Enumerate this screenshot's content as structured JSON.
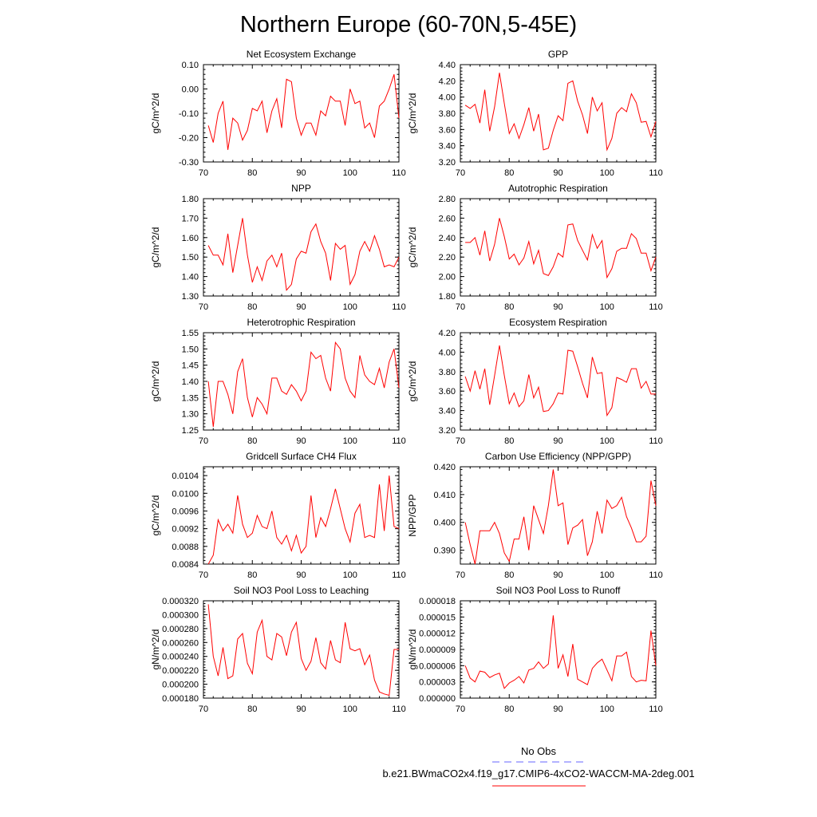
{
  "page_title": "Northern Europe (60-70N,5-45E)",
  "colors": {
    "series": "#ff0000",
    "axis": "#000000",
    "obs": "#6666ff"
  },
  "legend": {
    "obs_label": "No Obs",
    "model_label": "b.e21.BWmaCO2x4.f19_g17.CMIP6-4xCO2-WACCM-MA-2deg.001"
  },
  "chart_data": [
    {
      "type": "line",
      "title": "Net Ecosystem Exchange",
      "ylabel": "gC/m^2/d",
      "xlim": [
        70,
        110
      ],
      "ylim": [
        -0.3,
        0.1
      ],
      "xticks": [
        "70",
        "80",
        "90",
        "100",
        "110"
      ],
      "yticks": [
        "0.10",
        "0.00",
        "-0.10",
        "-0.20",
        "-0.30"
      ],
      "x": [
        71,
        72,
        73,
        74,
        75,
        76,
        77,
        78,
        79,
        80,
        81,
        82,
        83,
        84,
        85,
        86,
        87,
        88,
        89,
        90,
        91,
        92,
        93,
        94,
        95,
        96,
        97,
        98,
        99,
        100,
        101,
        102,
        103,
        104,
        105,
        106,
        107,
        108,
        109,
        110
      ],
      "values": [
        -0.15,
        -0.22,
        -0.1,
        -0.05,
        -0.25,
        -0.12,
        -0.14,
        -0.21,
        -0.17,
        -0.08,
        -0.09,
        -0.05,
        -0.18,
        -0.09,
        -0.04,
        -0.16,
        0.04,
        0.03,
        -0.12,
        -0.19,
        -0.14,
        -0.14,
        -0.19,
        -0.09,
        -0.11,
        -0.03,
        -0.05,
        -0.05,
        -0.15,
        0.0,
        -0.06,
        -0.05,
        -0.16,
        -0.14,
        -0.2,
        -0.07,
        -0.05,
        0.0,
        0.06,
        -0.12
      ]
    },
    {
      "type": "line",
      "title": "GPP",
      "ylabel": "gC/m^2/d",
      "xlim": [
        70,
        110
      ],
      "ylim": [
        3.2,
        4.4
      ],
      "xticks": [
        "70",
        "80",
        "90",
        "100",
        "110"
      ],
      "yticks": [
        "4.40",
        "4.20",
        "4.00",
        "3.80",
        "3.60",
        "3.40",
        "3.20"
      ],
      "x": [
        71,
        72,
        73,
        74,
        75,
        76,
        77,
        78,
        79,
        80,
        81,
        82,
        83,
        84,
        85,
        86,
        87,
        88,
        89,
        90,
        91,
        92,
        93,
        94,
        95,
        96,
        97,
        98,
        99,
        100,
        101,
        102,
        103,
        104,
        105,
        106,
        107,
        108,
        109,
        110
      ],
      "values": [
        3.9,
        3.86,
        3.91,
        3.68,
        4.09,
        3.58,
        3.88,
        4.3,
        3.92,
        3.55,
        3.67,
        3.49,
        3.66,
        3.87,
        3.58,
        3.79,
        3.35,
        3.37,
        3.59,
        3.77,
        3.71,
        4.17,
        4.2,
        3.95,
        3.78,
        3.55,
        4.0,
        3.83,
        3.93,
        3.35,
        3.49,
        3.8,
        3.87,
        3.82,
        4.04,
        3.93,
        3.69,
        3.7,
        3.51,
        3.7
      ]
    },
    {
      "type": "line",
      "title": "NPP",
      "ylabel": "gC/m^2/d",
      "xlim": [
        70,
        110
      ],
      "ylim": [
        1.3,
        1.8
      ],
      "xticks": [
        "70",
        "80",
        "90",
        "100",
        "110"
      ],
      "yticks": [
        "1.80",
        "1.70",
        "1.60",
        "1.50",
        "1.40",
        "1.30"
      ],
      "x": [
        71,
        72,
        73,
        74,
        75,
        76,
        77,
        78,
        79,
        80,
        81,
        82,
        83,
        84,
        85,
        86,
        87,
        88,
        89,
        90,
        91,
        92,
        93,
        94,
        95,
        96,
        97,
        98,
        99,
        100,
        101,
        102,
        103,
        104,
        105,
        106,
        107,
        108,
        109,
        110
      ],
      "values": [
        1.56,
        1.51,
        1.51,
        1.46,
        1.62,
        1.42,
        1.56,
        1.7,
        1.51,
        1.37,
        1.45,
        1.38,
        1.48,
        1.51,
        1.45,
        1.52,
        1.33,
        1.36,
        1.49,
        1.53,
        1.52,
        1.63,
        1.67,
        1.58,
        1.52,
        1.38,
        1.57,
        1.54,
        1.56,
        1.36,
        1.41,
        1.53,
        1.58,
        1.53,
        1.61,
        1.54,
        1.45,
        1.46,
        1.45,
        1.5
      ]
    },
    {
      "type": "line",
      "title": "Autotrophic Respiration",
      "ylabel": "gC/m^2/d",
      "xlim": [
        70,
        110
      ],
      "ylim": [
        1.8,
        2.8
      ],
      "xticks": [
        "70",
        "80",
        "90",
        "100",
        "110"
      ],
      "yticks": [
        "2.80",
        "2.60",
        "2.40",
        "2.20",
        "2.00",
        "1.80"
      ],
      "x": [
        71,
        72,
        73,
        74,
        75,
        76,
        77,
        78,
        79,
        80,
        81,
        82,
        83,
        84,
        85,
        86,
        87,
        88,
        89,
        90,
        91,
        92,
        93,
        94,
        95,
        96,
        97,
        98,
        99,
        100,
        101,
        102,
        103,
        104,
        105,
        106,
        107,
        108,
        109,
        110
      ],
      "values": [
        2.35,
        2.35,
        2.4,
        2.22,
        2.47,
        2.16,
        2.33,
        2.6,
        2.41,
        2.18,
        2.23,
        2.12,
        2.19,
        2.36,
        2.13,
        2.27,
        2.03,
        2.01,
        2.1,
        2.24,
        2.2,
        2.53,
        2.54,
        2.37,
        2.27,
        2.17,
        2.43,
        2.29,
        2.37,
        1.99,
        2.08,
        2.26,
        2.29,
        2.29,
        2.44,
        2.39,
        2.24,
        2.24,
        2.06,
        2.2
      ]
    },
    {
      "type": "line",
      "title": "Heterotrophic Respiration",
      "ylabel": "gC/m^2/d",
      "xlim": [
        70,
        110
      ],
      "ylim": [
        1.25,
        1.55
      ],
      "xticks": [
        "70",
        "80",
        "90",
        "100",
        "110"
      ],
      "yticks": [
        "1.55",
        "1.50",
        "1.45",
        "1.40",
        "1.35",
        "1.30",
        "1.25"
      ],
      "x": [
        71,
        72,
        73,
        74,
        75,
        76,
        77,
        78,
        79,
        80,
        81,
        82,
        83,
        84,
        85,
        86,
        87,
        88,
        89,
        90,
        91,
        92,
        93,
        94,
        95,
        96,
        97,
        98,
        99,
        100,
        101,
        102,
        103,
        104,
        105,
        106,
        107,
        108,
        109,
        110
      ],
      "values": [
        1.4,
        1.26,
        1.4,
        1.4,
        1.36,
        1.3,
        1.43,
        1.47,
        1.35,
        1.29,
        1.35,
        1.33,
        1.3,
        1.41,
        1.41,
        1.37,
        1.36,
        1.39,
        1.37,
        1.34,
        1.37,
        1.49,
        1.47,
        1.48,
        1.41,
        1.37,
        1.52,
        1.5,
        1.41,
        1.37,
        1.35,
        1.48,
        1.42,
        1.4,
        1.39,
        1.44,
        1.38,
        1.46,
        1.5,
        1.38
      ]
    },
    {
      "type": "line",
      "title": "Ecosystem Respiration",
      "ylabel": "gC/m^2/d",
      "xlim": [
        70,
        110
      ],
      "ylim": [
        3.2,
        4.2
      ],
      "xticks": [
        "70",
        "80",
        "90",
        "100",
        "110"
      ],
      "yticks": [
        "4.20",
        "4.00",
        "3.80",
        "3.60",
        "3.40",
        "3.20"
      ],
      "x": [
        71,
        72,
        73,
        74,
        75,
        76,
        77,
        78,
        79,
        80,
        81,
        82,
        83,
        84,
        85,
        86,
        87,
        88,
        89,
        90,
        91,
        92,
        93,
        94,
        95,
        96,
        97,
        98,
        99,
        100,
        101,
        102,
        103,
        104,
        105,
        106,
        107,
        108,
        109,
        110
      ],
      "values": [
        3.75,
        3.6,
        3.81,
        3.62,
        3.83,
        3.46,
        3.76,
        4.07,
        3.76,
        3.47,
        3.58,
        3.44,
        3.5,
        3.77,
        3.53,
        3.64,
        3.39,
        3.4,
        3.47,
        3.58,
        3.57,
        4.02,
        4.01,
        3.85,
        3.68,
        3.53,
        3.95,
        3.78,
        3.79,
        3.35,
        3.43,
        3.74,
        3.72,
        3.69,
        3.83,
        3.83,
        3.63,
        3.7,
        3.57,
        3.57
      ]
    },
    {
      "type": "line",
      "title": "Gridcell Surface CH4 Flux",
      "ylabel": "gC/m^2/d",
      "xlim": [
        70,
        110
      ],
      "ylim": [
        0.0084,
        0.0106
      ],
      "xticks": [
        "70",
        "80",
        "90",
        "100",
        "110"
      ],
      "yticks": [
        "0.0104",
        "0.0100",
        "0.0096",
        "0.0092",
        "0.0088",
        "0.0084"
      ],
      "x": [
        71,
        72,
        73,
        74,
        75,
        76,
        77,
        78,
        79,
        80,
        81,
        82,
        83,
        84,
        85,
        86,
        87,
        88,
        89,
        90,
        91,
        92,
        93,
        94,
        95,
        96,
        97,
        98,
        99,
        100,
        101,
        102,
        103,
        104,
        105,
        106,
        107,
        108,
        109,
        110
      ],
      "values": [
        0.0084,
        0.0086,
        0.0094,
        0.00915,
        0.0093,
        0.0091,
        0.00995,
        0.0093,
        0.009,
        0.0091,
        0.0095,
        0.00925,
        0.0092,
        0.0096,
        0.009,
        0.00885,
        0.00905,
        0.0087,
        0.00905,
        0.00865,
        0.0088,
        0.00995,
        0.009,
        0.00945,
        0.00925,
        0.00965,
        0.0101,
        0.00965,
        0.0092,
        0.0089,
        0.00955,
        0.00975,
        0.009,
        0.00905,
        0.009,
        0.0102,
        0.00915,
        0.0104,
        0.00925,
        0.0092
      ]
    },
    {
      "type": "line",
      "title": "Carbon Use Efficiency (NPP/GPP)",
      "ylabel": "NPP/GPP",
      "xlim": [
        70,
        110
      ],
      "ylim": [
        0.385,
        0.42
      ],
      "xticks": [
        "70",
        "80",
        "90",
        "100",
        "110"
      ],
      "yticks": [
        "0.420",
        "0.410",
        "0.400",
        "0.390"
      ],
      "x": [
        71,
        72,
        73,
        74,
        75,
        76,
        77,
        78,
        79,
        80,
        81,
        82,
        83,
        84,
        85,
        86,
        87,
        88,
        89,
        90,
        91,
        92,
        93,
        94,
        95,
        96,
        97,
        98,
        99,
        100,
        101,
        102,
        103,
        104,
        105,
        106,
        107,
        108,
        109,
        110
      ],
      "values": [
        0.4,
        0.392,
        0.385,
        0.397,
        0.397,
        0.397,
        0.4,
        0.396,
        0.389,
        0.386,
        0.394,
        0.394,
        0.402,
        0.39,
        0.406,
        0.401,
        0.396,
        0.406,
        0.419,
        0.406,
        0.407,
        0.392,
        0.398,
        0.399,
        0.401,
        0.388,
        0.393,
        0.404,
        0.396,
        0.408,
        0.405,
        0.406,
        0.409,
        0.402,
        0.398,
        0.393,
        0.393,
        0.395,
        0.415,
        0.406
      ]
    },
    {
      "type": "line",
      "title": "Soil NO3 Pool Loss to Leaching",
      "ylabel": "gN/m^2/d",
      "xlim": [
        70,
        110
      ],
      "ylim": [
        0.00018,
        0.00032
      ],
      "xticks": [
        "70",
        "80",
        "90",
        "100",
        "110"
      ],
      "yticks": [
        "0.000320",
        "0.000300",
        "0.000280",
        "0.000260",
        "0.000240",
        "0.000220",
        "0.000200",
        "0.000180"
      ],
      "x": [
        71,
        72,
        73,
        74,
        75,
        76,
        77,
        78,
        79,
        80,
        81,
        82,
        83,
        84,
        85,
        86,
        87,
        88,
        89,
        90,
        91,
        92,
        93,
        94,
        95,
        96,
        97,
        98,
        99,
        100,
        101,
        102,
        103,
        104,
        105,
        106,
        107,
        108,
        109,
        110
      ],
      "values": [
        0.000315,
        0.00024,
        0.000212,
        0.000253,
        0.000208,
        0.000212,
        0.000265,
        0.000273,
        0.00023,
        0.000215,
        0.000275,
        0.000292,
        0.00024,
        0.000235,
        0.000273,
        0.000268,
        0.000241,
        0.000275,
        0.000289,
        0.000237,
        0.00022,
        0.000233,
        0.000267,
        0.000231,
        0.000222,
        0.000263,
        0.000235,
        0.000231,
        0.000289,
        0.000251,
        0.000248,
        0.000251,
        0.000228,
        0.000242,
        0.000206,
        0.000189,
        0.000186,
        0.000184,
        0.00025,
        0.00025
      ]
    },
    {
      "type": "line",
      "title": "Soil NO3 Pool Loss to Runoff",
      "ylabel": "gN/m^2/d",
      "xlim": [
        70,
        110
      ],
      "ylim": [
        0.0,
        1.8e-05
      ],
      "xticks": [
        "70",
        "80",
        "90",
        "100",
        "110"
      ],
      "yticks": [
        "0.000018",
        "0.000015",
        "0.000012",
        "0.000009",
        "0.000006",
        "0.000003",
        "0.000000"
      ],
      "x": [
        71,
        72,
        73,
        74,
        75,
        76,
        77,
        78,
        79,
        80,
        81,
        82,
        83,
        84,
        85,
        86,
        87,
        88,
        89,
        90,
        91,
        92,
        93,
        94,
        95,
        96,
        97,
        98,
        99,
        100,
        101,
        102,
        103,
        104,
        105,
        106,
        107,
        108,
        109,
        110
      ],
      "values": [
        6e-06,
        3.7e-06,
        3e-06,
        5e-06,
        4.8e-06,
        3.8e-06,
        4.3e-06,
        4.6e-06,
        1.8e-06,
        2.8e-06,
        3.3e-06,
        4e-06,
        2.8e-06,
        5.2e-06,
        5.5e-06,
        6.7e-06,
        5.5e-06,
        6.3e-06,
        1.53e-05,
        5.5e-06,
        8e-06,
        4e-06,
        1e-05,
        3.5e-06,
        3e-06,
        2.5e-06,
        5.5e-06,
        6.5e-06,
        7.2e-06,
        5.2e-06,
        3.2e-06,
        7.8e-06,
        7.8e-06,
        8.5e-06,
        4e-06,
        3e-06,
        3.3e-06,
        3.2e-06,
        1.25e-05,
        6e-06
      ]
    }
  ]
}
